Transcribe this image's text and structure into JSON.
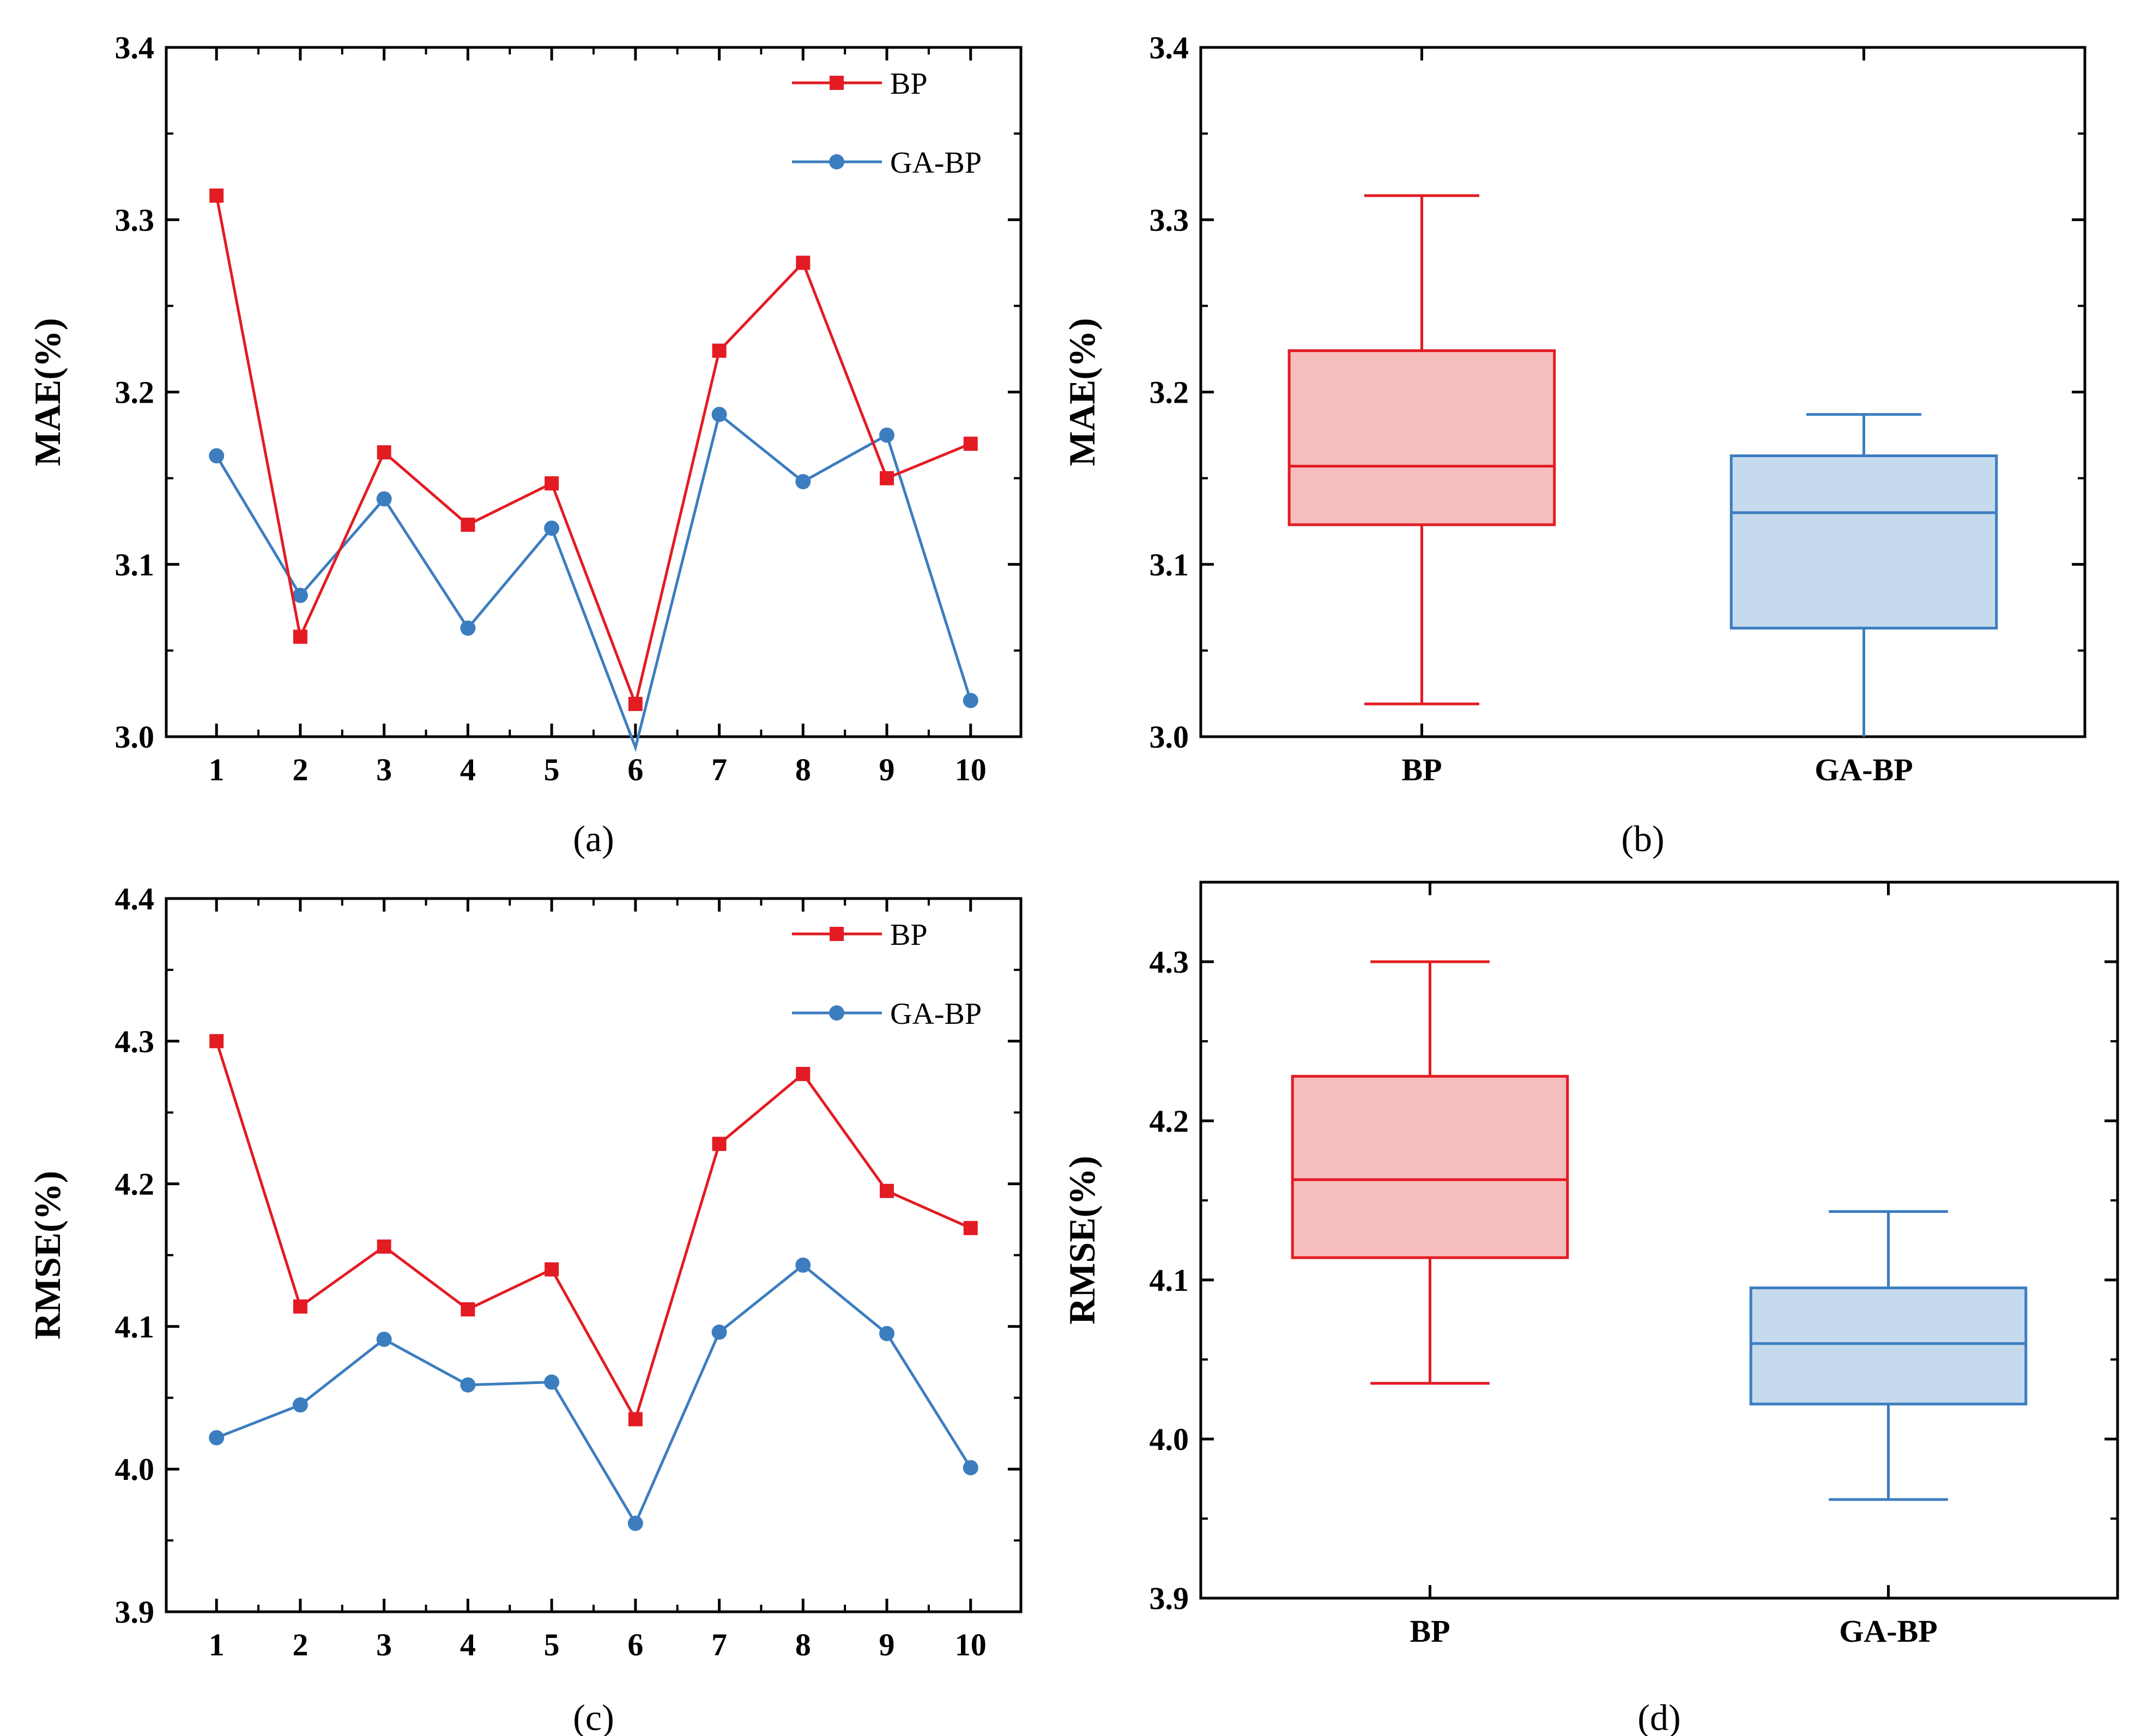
{
  "colors": {
    "bp": "#E31B23",
    "gabp": "#3C7DBF",
    "bp_fill": "#F6BDBD",
    "gabp_fill": "#C6DAEE"
  },
  "chart_data": [
    {
      "id": "a",
      "type": "line",
      "caption": "(a)",
      "ylabel": "MAE(%)",
      "xlabel": "",
      "categories": [
        "1",
        "2",
        "3",
        "4",
        "5",
        "6",
        "7",
        "8",
        "9",
        "10"
      ],
      "ylim": [
        3.0,
        3.4
      ],
      "yticks": [
        "3.0",
        "3.1",
        "3.2",
        "3.3",
        "3.4"
      ],
      "legend_position": "top-right",
      "series": [
        {
          "name": "BP",
          "marker": "square",
          "values": [
            3.314,
            3.058,
            3.165,
            3.123,
            3.147,
            3.019,
            3.224,
            3.275,
            3.15,
            3.17
          ]
        },
        {
          "name": "GA-BP",
          "marker": "circle",
          "values": [
            3.163,
            3.082,
            3.138,
            3.063,
            3.121,
            2.99,
            3.187,
            3.148,
            3.175,
            3.021
          ]
        }
      ]
    },
    {
      "id": "b",
      "type": "box",
      "caption": "(b)",
      "ylabel": "MAE(%)",
      "categories": [
        "BP",
        "GA-BP"
      ],
      "ylim": [
        3.0,
        3.4
      ],
      "yticks": [
        "3.0",
        "3.1",
        "3.2",
        "3.3",
        "3.4"
      ],
      "boxes": [
        {
          "name": "BP",
          "min": 3.019,
          "q1": 3.123,
          "median": 3.157,
          "q3": 3.224,
          "max": 3.314
        },
        {
          "name": "GA-BP",
          "min": 2.99,
          "q1": 3.063,
          "median": 3.13,
          "q3": 3.163,
          "max": 3.187
        }
      ]
    },
    {
      "id": "c",
      "type": "line",
      "caption": "(c)",
      "ylabel": "RMSE(%)",
      "xlabel": "",
      "categories": [
        "1",
        "2",
        "3",
        "4",
        "5",
        "6",
        "7",
        "8",
        "9",
        "10"
      ],
      "ylim": [
        3.9,
        4.4
      ],
      "yticks": [
        "3.9",
        "4.0",
        "4.1",
        "4.2",
        "4.3",
        "4.4"
      ],
      "legend_position": "top-right",
      "series": [
        {
          "name": "BP",
          "marker": "square",
          "values": [
            4.3,
            4.114,
            4.156,
            4.112,
            4.14,
            4.035,
            4.228,
            4.277,
            4.195,
            4.169
          ]
        },
        {
          "name": "GA-BP",
          "marker": "circle",
          "values": [
            4.022,
            4.045,
            4.091,
            4.059,
            4.061,
            3.962,
            4.096,
            4.143,
            4.095,
            4.001
          ]
        }
      ]
    },
    {
      "id": "d",
      "type": "box",
      "caption": "(d)",
      "ylabel": "RMSE(%)",
      "categories": [
        "BP",
        "GA-BP"
      ],
      "ylim": [
        3.9,
        4.35
      ],
      "yticks": [
        "3.9",
        "4.0",
        "4.1",
        "4.2",
        "4.3"
      ],
      "boxes": [
        {
          "name": "BP",
          "min": 4.035,
          "q1": 4.114,
          "median": 4.163,
          "q3": 4.228,
          "max": 4.3
        },
        {
          "name": "GA-BP",
          "min": 3.962,
          "q1": 4.022,
          "median": 4.06,
          "q3": 4.095,
          "max": 4.143
        }
      ]
    }
  ]
}
